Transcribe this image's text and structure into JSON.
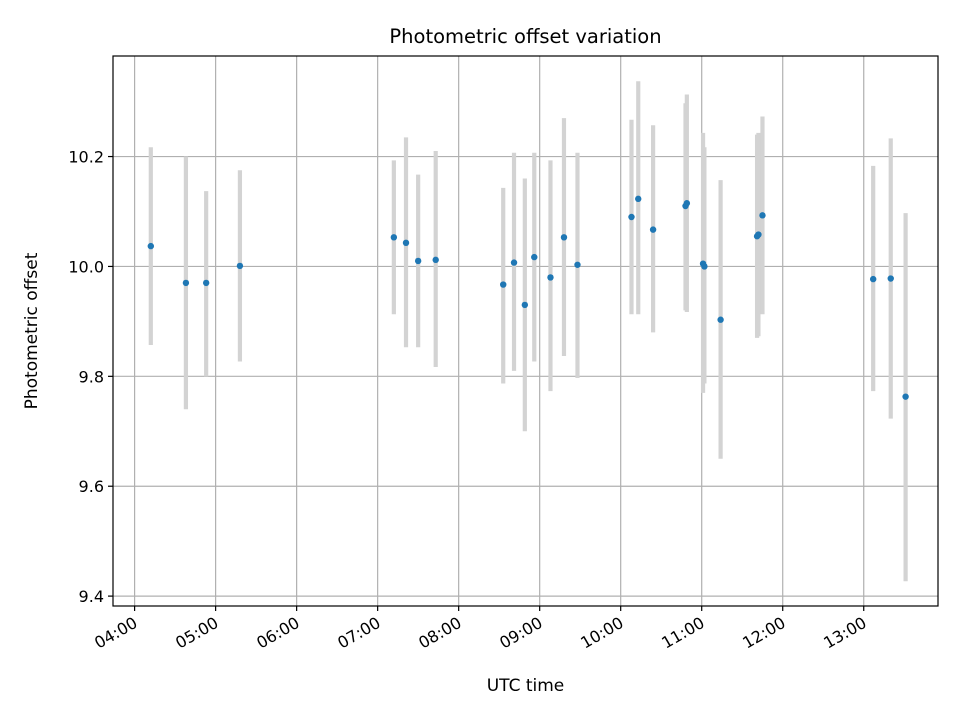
{
  "chart_data": {
    "type": "scatter",
    "title": "Photometric offset variation",
    "xlabel": "UTC time",
    "ylabel": "Photometric offset",
    "x_tick_labels": [
      "04:00",
      "05:00",
      "06:00",
      "07:00",
      "08:00",
      "09:00",
      "10:00",
      "11:00",
      "12:00",
      "13:00"
    ],
    "y_tick_labels": [
      "9.4",
      "9.6",
      "9.8",
      "10.0",
      "10.2"
    ],
    "y_ticks": [
      9.4,
      9.6,
      9.8,
      10.0,
      10.2
    ],
    "x_ticks": [
      "04:00",
      "05:00",
      "06:00",
      "07:00",
      "08:00",
      "09:00",
      "10:00",
      "11:00",
      "12:00",
      "13:00"
    ],
    "xlim": [
      "03:44",
      "13:55"
    ],
    "ylim": [
      9.382,
      10.383
    ],
    "grid": true,
    "colors": {
      "points": "#1f77b4",
      "errorbars": "#d3d3d3",
      "grid": "#b0b0b0"
    },
    "points": [
      {
        "x": "04:12",
        "y": 10.037,
        "yerr_low": 9.857,
        "yerr_high": 10.217
      },
      {
        "x": "04:38",
        "y": 9.97,
        "yerr_low": 9.74,
        "yerr_high": 10.2
      },
      {
        "x": "04:53",
        "y": 9.97,
        "yerr_low": 9.8,
        "yerr_high": 10.137
      },
      {
        "x": "05:18",
        "y": 10.001,
        "yerr_low": 9.827,
        "yerr_high": 10.175
      },
      {
        "x": "07:12",
        "y": 10.053,
        "yerr_low": 9.913,
        "yerr_high": 10.193
      },
      {
        "x": "07:21",
        "y": 10.043,
        "yerr_low": 9.853,
        "yerr_high": 10.235
      },
      {
        "x": "07:30",
        "y": 10.01,
        "yerr_low": 9.853,
        "yerr_high": 10.167
      },
      {
        "x": "07:43",
        "y": 10.012,
        "yerr_low": 9.817,
        "yerr_high": 10.21
      },
      {
        "x": "08:33",
        "y": 9.967,
        "yerr_low": 9.787,
        "yerr_high": 10.143
      },
      {
        "x": "08:41",
        "y": 10.007,
        "yerr_low": 9.81,
        "yerr_high": 10.207
      },
      {
        "x": "08:49",
        "y": 9.93,
        "yerr_low": 9.7,
        "yerr_high": 10.16
      },
      {
        "x": "08:56",
        "y": 10.017,
        "yerr_low": 9.827,
        "yerr_high": 10.207
      },
      {
        "x": "09:08",
        "y": 9.98,
        "yerr_low": 9.773,
        "yerr_high": 10.193
      },
      {
        "x": "09:18",
        "y": 10.053,
        "yerr_low": 9.837,
        "yerr_high": 10.27
      },
      {
        "x": "09:28",
        "y": 10.003,
        "yerr_low": 9.797,
        "yerr_high": 10.207
      },
      {
        "x": "10:08",
        "y": 10.09,
        "yerr_low": 9.913,
        "yerr_high": 10.267
      },
      {
        "x": "10:13",
        "y": 10.123,
        "yerr_low": 9.913,
        "yerr_high": 10.337
      },
      {
        "x": "10:24",
        "y": 10.067,
        "yerr_low": 9.88,
        "yerr_high": 10.257
      },
      {
        "x": "10:48",
        "y": 10.11,
        "yerr_low": 9.92,
        "yerr_high": 10.297
      },
      {
        "x": "10:49",
        "y": 10.115,
        "yerr_low": 9.917,
        "yerr_high": 10.313
      },
      {
        "x": "11:01",
        "y": 10.005,
        "yerr_low": 9.77,
        "yerr_high": 10.243
      },
      {
        "x": "11:02",
        "y": 10.0,
        "yerr_low": 9.787,
        "yerr_high": 10.217
      },
      {
        "x": "11:14",
        "y": 9.903,
        "yerr_low": 9.65,
        "yerr_high": 10.157
      },
      {
        "x": "11:41",
        "y": 10.055,
        "yerr_low": 9.87,
        "yerr_high": 10.24
      },
      {
        "x": "11:42",
        "y": 10.058,
        "yerr_low": 9.873,
        "yerr_high": 10.243
      },
      {
        "x": "11:45",
        "y": 10.093,
        "yerr_low": 9.913,
        "yerr_high": 10.273
      },
      {
        "x": "13:07",
        "y": 9.977,
        "yerr_low": 9.773,
        "yerr_high": 10.183
      },
      {
        "x": "13:20",
        "y": 9.978,
        "yerr_low": 9.723,
        "yerr_high": 10.233
      },
      {
        "x": "13:31",
        "y": 9.763,
        "yerr_low": 9.427,
        "yerr_high": 10.097
      }
    ]
  }
}
